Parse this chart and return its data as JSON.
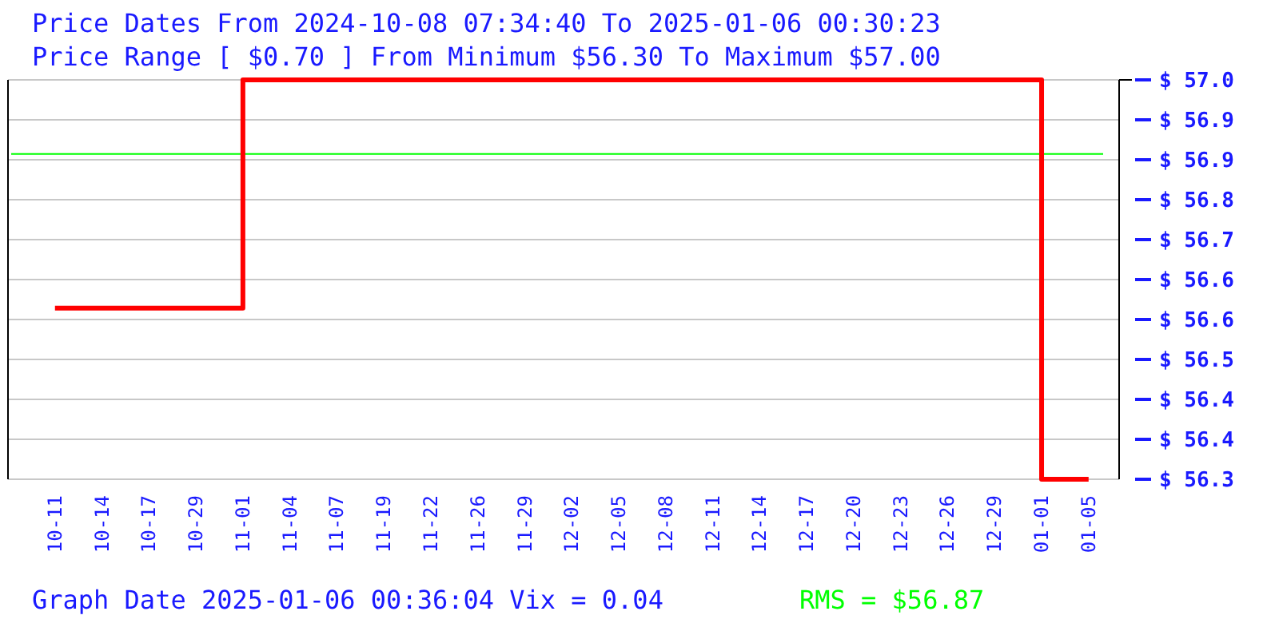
{
  "chart_data": {
    "type": "step",
    "title": "Price Dates From 2024-10-08 07:34:40 To 2025-01-06 00:30:23",
    "subtitle": "Price Range [ $0.70 ] From Minimum $56.30 To Maximum $57.00",
    "annotations": [
      "Graph Date 2025-01-06 00:36:04 Vix = 0.04"
    ],
    "categories": [
      "10-11",
      "10-14",
      "10-17",
      "10-29",
      "11-01",
      "11-04",
      "11-07",
      "11-19",
      "11-22",
      "11-26",
      "11-29",
      "12-02",
      "12-05",
      "12-08",
      "12-11",
      "12-14",
      "12-17",
      "12-20",
      "12-23",
      "12-26",
      "12-29",
      "01-01",
      "01-05"
    ],
    "series": [
      {
        "color": "#ff0000",
        "values": [
          56.6,
          56.6,
          56.6,
          56.6,
          57.0,
          57.0,
          57.0,
          57.0,
          57.0,
          57.0,
          57.0,
          57.0,
          57.0,
          57.0,
          57.0,
          57.0,
          57.0,
          57.0,
          57.0,
          57.0,
          57.0,
          56.3,
          56.3
        ]
      }
    ],
    "ylim": [
      56.3,
      57.0
    ],
    "yticks": [
      {
        "value": 56.3,
        "label": "$ 56.3"
      },
      {
        "value": 56.37,
        "label": "$ 56.4"
      },
      {
        "value": 56.44,
        "label": "$ 56.4"
      },
      {
        "value": 56.51,
        "label": "$ 56.5"
      },
      {
        "value": 56.58,
        "label": "$ 56.6"
      },
      {
        "value": 56.65,
        "label": "$ 56.6"
      },
      {
        "value": 56.72,
        "label": "$ 56.7"
      },
      {
        "value": 56.79,
        "label": "$ 56.8"
      },
      {
        "value": 56.86,
        "label": "$ 56.9"
      },
      {
        "value": 56.93,
        "label": "$ 56.9"
      },
      {
        "value": 57.0,
        "label": "$ 57.0"
      }
    ],
    "ref_lines": [
      {
        "axis": "y",
        "value": 56.87,
        "label": "RMS = $56.87",
        "color": "#00ff00"
      }
    ],
    "grid": "y",
    "marker": "none",
    "line_style": "solid"
  }
}
